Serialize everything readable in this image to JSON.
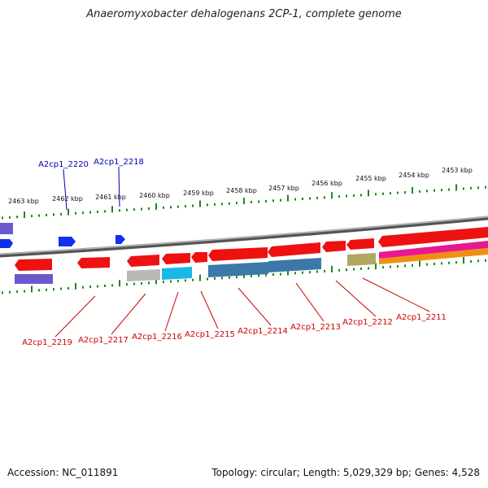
{
  "title": "Anaeromyxobacter dehalogenans 2CP-1, complete genome",
  "footer": {
    "accession": "Accession: NC_011891",
    "summary": "Topology: circular; Length: 5,029,329 bp; Genes: 4,528"
  },
  "colors": {
    "ruler_ticks": "#1a8a1a",
    "backbone": "#888888",
    "top_label": "#0000b0",
    "bottom_label": "#cc0000",
    "red_gene": "#ee1111",
    "blue_gene": "#1030ee",
    "purple_gene": "#6a5acd",
    "gray_gene": "#b8b8b8",
    "cyan_gene": "#18b8e8",
    "steelblue_gene": "#3c78a8",
    "khaki_gene": "#b0a860",
    "magenta_gene": "#e81890",
    "orange_gene": "#f09010"
  },
  "kbp_labels": [
    "2463 kbp",
    "2462 kbp",
    "2461 kbp",
    "2460 kbp",
    "2459 kbp",
    "2458 kbp",
    "2457 kbp",
    "2456 kbp",
    "2455 kbp",
    "2454 kbp",
    "2453 kbp"
  ],
  "top_gene_labels": [
    "A2cp1_2220",
    "A2cp1_2218"
  ],
  "bottom_gene_labels": [
    "A2cp1_2219",
    "A2cp1_2217",
    "A2cp1_2216",
    "A2cp1_2215",
    "A2cp1_2214",
    "A2cp1_2213",
    "A2cp1_2212",
    "A2cp1_2211"
  ]
}
